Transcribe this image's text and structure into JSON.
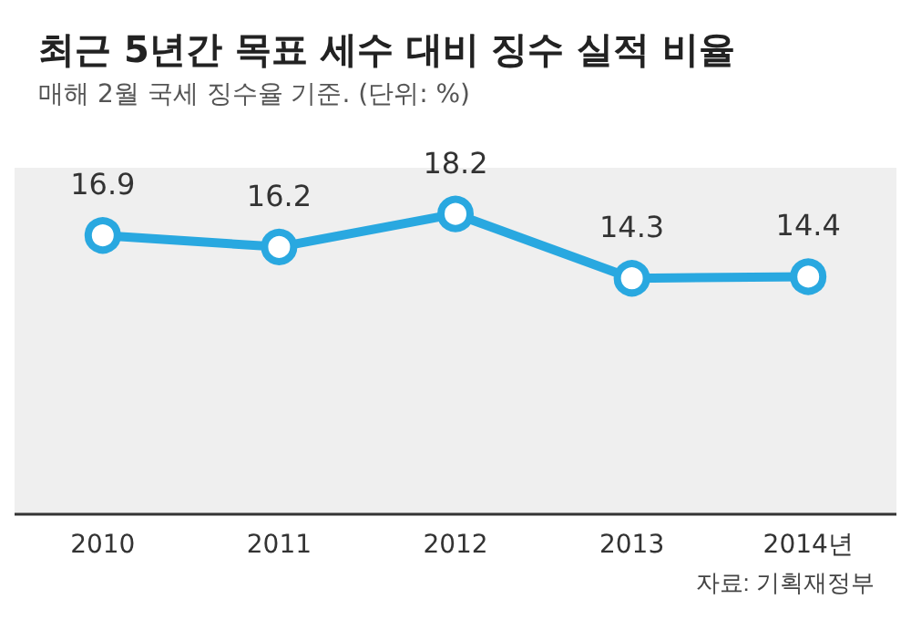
{
  "chart_data": {
    "type": "line",
    "title": "최근 5년간 목표 세수 대비 징수 실적 비율",
    "subtitle": "매해 2월 국세 징수율 기준. (단위: %)",
    "categories": [
      "2010",
      "2011",
      "2012",
      "2013",
      "2014년"
    ],
    "series": [
      {
        "color": "#29a8e0",
        "values": [
          16.9,
          16.2,
          18.2,
          14.3,
          14.4
        ]
      }
    ],
    "data_labels": true,
    "marker": "circle",
    "annotations": [
      "자료: 기획재정부"
    ]
  }
}
